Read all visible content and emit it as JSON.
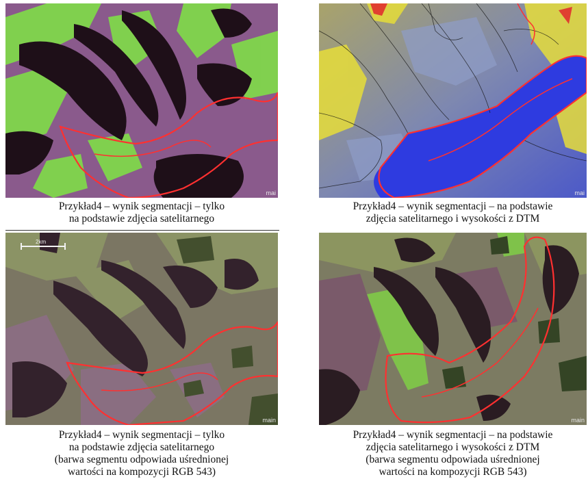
{
  "panels": [
    {
      "corner_label": "mai",
      "caption_lines": [
        "Przykład4 – wynik segmentacji – tylko",
        "na podstawie zdjęcia satelitarnego"
      ]
    },
    {
      "corner_label": "mai",
      "caption_lines": [
        "Przykład4 – wynik segmentacji – na podstawie",
        "zdjęcia satelitarnego i wysokości z DTM"
      ]
    },
    {
      "corner_label": "main",
      "scale_label": "2km",
      "caption_lines": [
        "Przykład4 – wynik segmentacji – tylko",
        "na podstawie zdjęcia satelitarnego",
        "(barwa segmentu odpowiada uśrednionej",
        "wartości na kompozycji RGB 543)"
      ]
    },
    {
      "corner_label": "main",
      "caption_lines": [
        "Przykład4 – wynik segmentacji – na podstawie",
        "zdjęcia satelitarnego i wysokości z DTM",
        "(barwa segmentu odpowiada uśrednionej",
        "wartości na kompozycji RGB 543)"
      ]
    }
  ],
  "colors": {
    "boundary_highlight": "#ff3030",
    "segment_line": "#000000"
  }
}
